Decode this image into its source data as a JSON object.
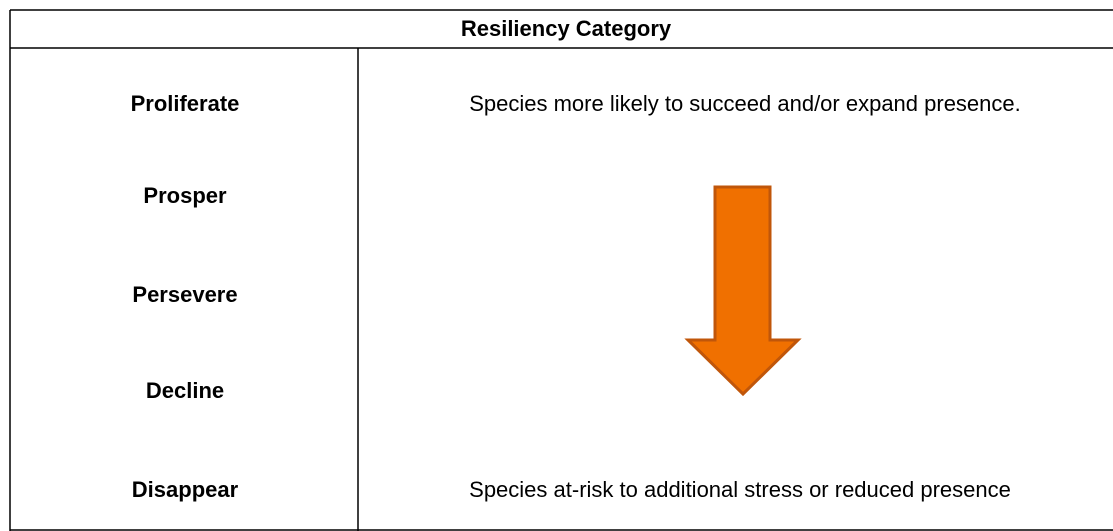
{
  "table": {
    "header": "Resiliency Category",
    "categories": [
      "Proliferate",
      "Prosper",
      "Persevere",
      "Decline",
      "Disappear"
    ],
    "description_top": "Species more likely to succeed and/or expand presence.",
    "description_bottom": "Species at-risk to additional stress or reduced presence"
  }
}
